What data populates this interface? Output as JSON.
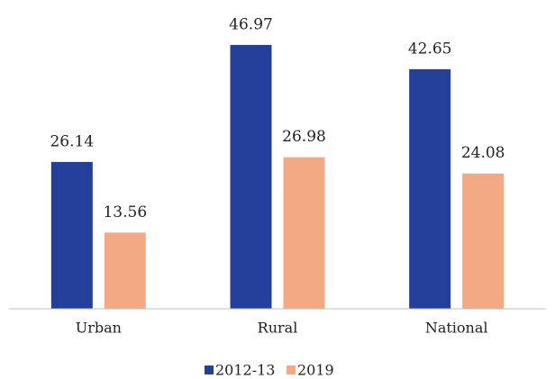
{
  "chart_data": {
    "type": "bar",
    "categories": [
      "Urban",
      "Rural",
      "National"
    ],
    "series": [
      {
        "name": "2012-13",
        "color": "#243f9a",
        "values": [
          26.14,
          46.97,
          42.65
        ]
      },
      {
        "name": "2019",
        "color": "#f4a985",
        "values": [
          13.56,
          26.98,
          24.08
        ]
      }
    ],
    "ylim": [
      0,
      50
    ]
  }
}
